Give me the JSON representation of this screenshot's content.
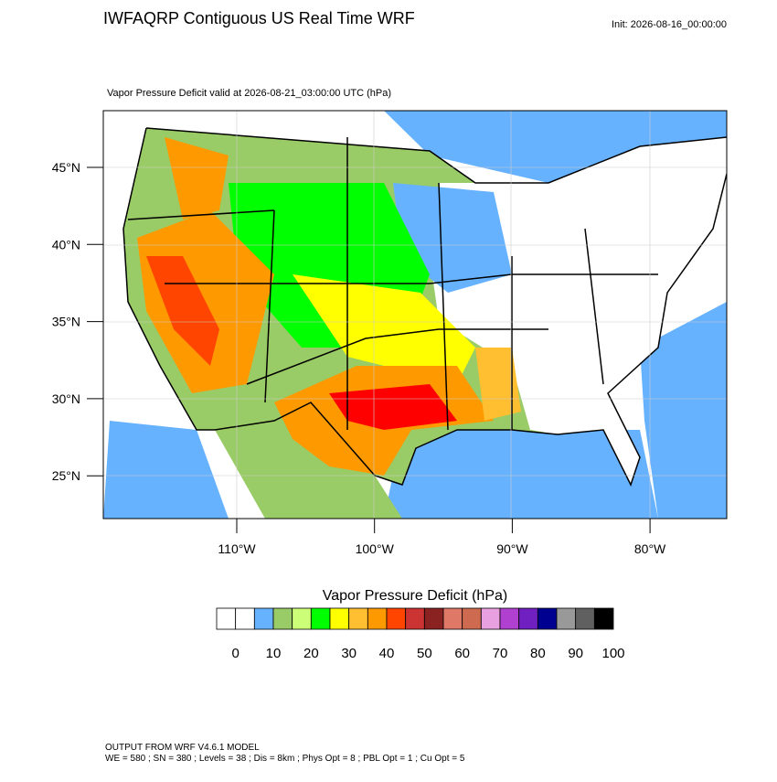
{
  "header": {
    "title": "IWFAQRP Contiguous US Real Time WRF",
    "init": "Init: 2026-08-16_00:00:00",
    "subtitle": "Vapor Pressure Deficit valid at 2026-08-21_03:00:00 UTC   (hPa)"
  },
  "map": {
    "lat_labels": [
      "45°N",
      "40°N",
      "35°N",
      "30°N",
      "25°N"
    ],
    "lon_labels": [
      "110°W",
      "100°W",
      "90°W",
      "80°W"
    ]
  },
  "colorbar": {
    "title": "Vapor Pressure Deficit  (hPa)",
    "colors": [
      "#ffffff",
      "#ffffff",
      "#66b2ff",
      "#99cc66",
      "#ccff77",
      "#00ff00",
      "#ffff00",
      "#ffbf30",
      "#ff9900",
      "#ff4500",
      "#cc3333",
      "#8b2222",
      "#e07868",
      "#cd6a50",
      "#e8a0e0",
      "#b040d0",
      "#7020c0",
      "#000090",
      "#999999",
      "#606060",
      "#000000"
    ],
    "labels": [
      0,
      10,
      20,
      30,
      40,
      50,
      60,
      70,
      80,
      90,
      100
    ]
  },
  "footer": {
    "line1": "OUTPUT FROM WRF V4.6.1 MODEL",
    "line2": "WE = 580 ; SN = 380 ; Levels = 38 ; Dis = 8km ; Phys Opt = 8 ; PBL Opt = 1 ; Cu Opt = 5"
  }
}
